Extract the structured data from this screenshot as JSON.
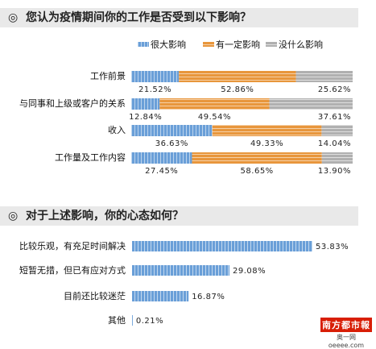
{
  "header1": {
    "symbol": "◎",
    "text": "您认为疫情期间你的工作是否受到以下影响？"
  },
  "header2": {
    "symbol": "◎",
    "text": "对于上述影响，你的心态如何？"
  },
  "colors": {
    "blue": "#6a9fd8",
    "orange": "#e8963c",
    "gray": "#b0b0b0",
    "mindset": "#6a9fd8"
  },
  "logo": {
    "main": "南方都市報",
    "sub": "奥一网oeeee.com"
  },
  "chart_data": [
    {
      "type": "bar",
      "stacked": true,
      "orientation": "horizontal",
      "categories": [
        "工作前景",
        "与同事和上级或客户的关系",
        "收入",
        "工作量及工作内容"
      ],
      "series": [
        {
          "name": "很大影响",
          "values": [
            21.52,
            12.84,
            36.63,
            27.45
          ],
          "labels": [
            "21.52%",
            "12.84%",
            "36.63%",
            "27.45%"
          ]
        },
        {
          "name": "有一定影响",
          "values": [
            52.86,
            49.54,
            49.33,
            58.65
          ],
          "labels": [
            "52.86%",
            "49.54%",
            "49.33%",
            "58.65%"
          ]
        },
        {
          "name": "没什么影响",
          "values": [
            25.62,
            37.61,
            14.04,
            13.9
          ],
          "labels": [
            "25.62%",
            "37.61%",
            "14.04%",
            "13.90%"
          ]
        }
      ],
      "xlim": [
        0,
        100
      ],
      "legend": "top"
    },
    {
      "type": "bar",
      "orientation": "horizontal",
      "categories": [
        "比较乐观，有充足时间解决",
        "短暂无措，但已有应对方式",
        "目前还比较迷茫",
        "其他"
      ],
      "values": [
        53.83,
        29.08,
        16.87,
        0.21
      ],
      "labels": [
        "53.83%",
        "29.08%",
        "16.87%",
        "0.21%"
      ],
      "xlim": [
        0,
        53.83
      ]
    }
  ]
}
